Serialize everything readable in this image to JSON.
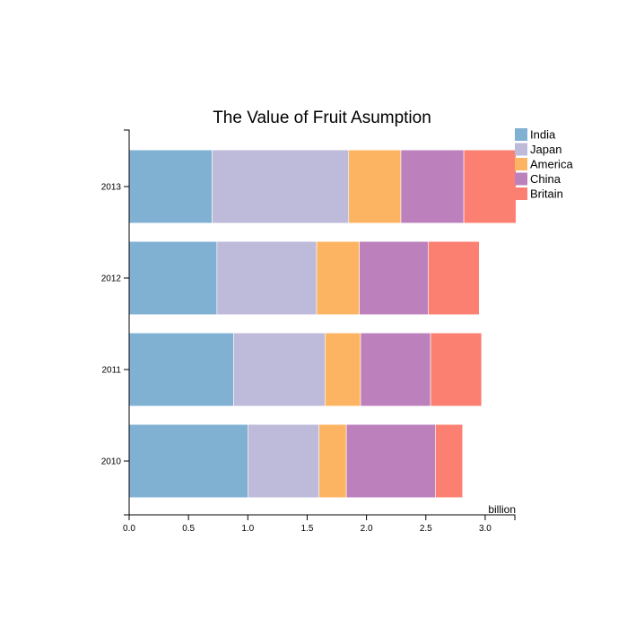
{
  "chart_data": {
    "type": "bar",
    "orientation": "horizontal",
    "stacked": true,
    "title": "The Value of Fruit Asumption",
    "xlabel": "billion",
    "ylabel": "",
    "xlim": [
      0,
      3.25
    ],
    "xticks": [
      "0.0",
      "0.5",
      "1.0",
      "1.5",
      "2.0",
      "2.5",
      "3.0"
    ],
    "xtick_values": [
      0,
      0.5,
      1.0,
      1.5,
      2.0,
      2.5,
      3.0
    ],
    "categories": [
      "2013",
      "2012",
      "2011",
      "2010"
    ],
    "series": [
      {
        "name": "India",
        "color": "#80b1d3",
        "values": [
          0.7,
          0.74,
          0.88,
          1.0
        ]
      },
      {
        "name": "Japan",
        "color": "#bebada",
        "values": [
          1.15,
          0.84,
          0.77,
          0.6
        ]
      },
      {
        "name": "America",
        "color": "#fdb462",
        "values": [
          0.44,
          0.36,
          0.3,
          0.23
        ]
      },
      {
        "name": "China",
        "color": "#bc80bd",
        "values": [
          0.53,
          0.58,
          0.59,
          0.75
        ]
      },
      {
        "name": "Britain",
        "color": "#fb8072",
        "values": [
          0.44,
          0.43,
          0.43,
          0.23
        ]
      }
    ],
    "legend_position": "top-right",
    "grid": false
  }
}
